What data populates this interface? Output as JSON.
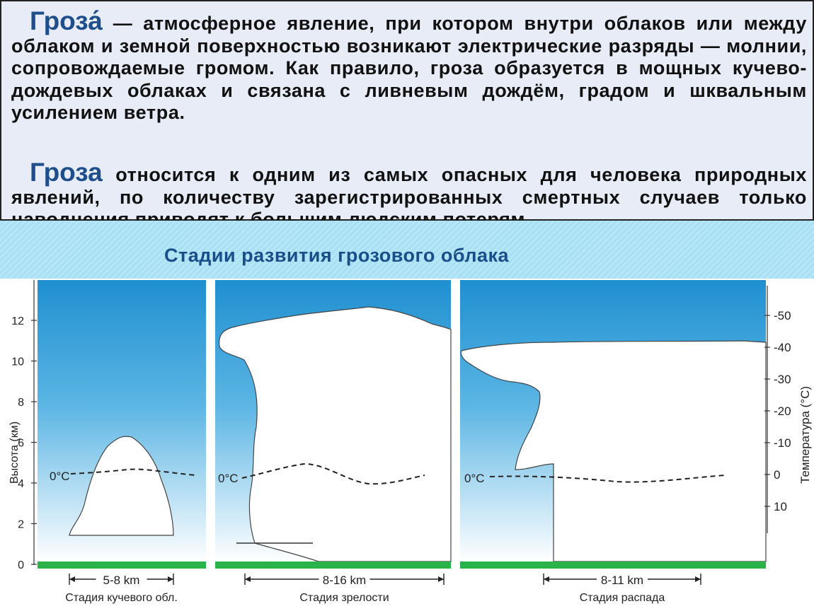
{
  "paragraph_1": {
    "lead": "Гроза́",
    "text": " — атмосферное явление, при котором внутри облаков или между облаком и земной поверхностью возникают электрические разряды — молнии, сопровождаемые громом. Как правило, гроза образуется в мощных кучево-дождевых облаках и связана с ливневым дождём, градом и шквальным усилением ветра."
  },
  "paragraph_2": {
    "lead": "Гроза",
    "text": " относится к одним из самых опасных для человека природных явлений, по количеству зарегистрированных смертных случаев только наводнения приводят к большим людским потерям."
  },
  "figure_title": "Стадии развития грозового облака",
  "diagram": {
    "y_axis_label": "Высота (км)",
    "y_ticks": [
      "0",
      "2",
      "4",
      "6",
      "8",
      "10",
      "12"
    ],
    "right_axis_label": "Температура (°С)",
    "right_ticks": [
      "-50",
      "-40",
      "-30",
      "-20",
      "-10",
      "0",
      "10"
    ],
    "freezing_label": "0°C",
    "stages": [
      {
        "caption": "Стадия кучевого обл.",
        "width_label": "5-8 km"
      },
      {
        "caption": "Стадия зрелости",
        "width_label": "8-16 km"
      },
      {
        "caption": "Стадия распада",
        "width_label": "8-11 km"
      }
    ],
    "colors": {
      "sky_top": "#1f8fd0",
      "sky_bottom": "#ffffff",
      "ground": "#29b34a",
      "title": "#1a4e8a",
      "lead": "#1f4e8c"
    }
  }
}
